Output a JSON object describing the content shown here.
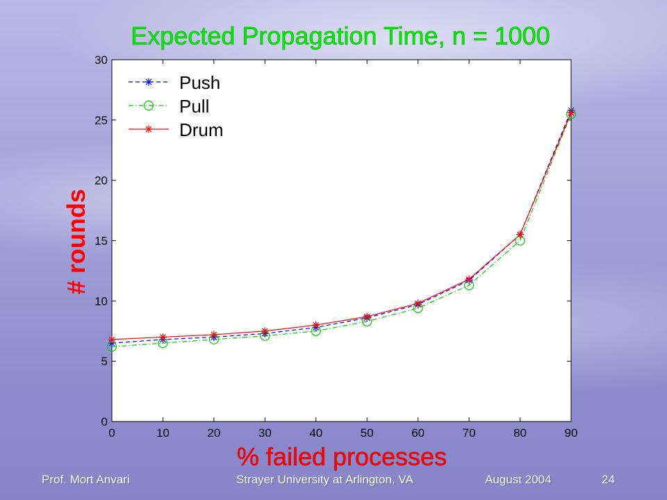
{
  "chart_data": {
    "type": "line",
    "title": "Expected Propagation Time, n = 1000",
    "xlabel": "% failed processes",
    "ylabel": "# rounds",
    "xlim": [
      0,
      90
    ],
    "ylim": [
      0,
      30
    ],
    "x": [
      0,
      10,
      20,
      30,
      40,
      50,
      60,
      70,
      80,
      90
    ],
    "xticks": [
      0,
      10,
      20,
      30,
      40,
      50,
      60,
      70,
      80,
      90
    ],
    "yticks": [
      0,
      5,
      10,
      15,
      20,
      25,
      30
    ],
    "legend_position": "top-left",
    "grid": false,
    "series": [
      {
        "name": "Push",
        "color": "#0000ff",
        "dash": "6,4",
        "marker": "star",
        "values": [
          6.5,
          6.8,
          7.0,
          7.3,
          7.8,
          8.6,
          9.7,
          11.7,
          15.5,
          25.8
        ]
      },
      {
        "name": "Pull",
        "color": "#00cc00",
        "dash": "7,3,1.5,3",
        "marker": "circle",
        "values": [
          6.2,
          6.5,
          6.8,
          7.1,
          7.5,
          8.3,
          9.4,
          11.3,
          15.0,
          25.5
        ]
      },
      {
        "name": "Drum",
        "color": "#ff0000",
        "dash": "",
        "marker": "star",
        "values": [
          6.8,
          7.0,
          7.2,
          7.5,
          8.0,
          8.7,
          9.8,
          11.8,
          15.5,
          25.6
        ]
      }
    ],
    "colors": {
      "title": "#00ee00",
      "axis_label": "#ff0000",
      "tick": "#000000"
    }
  },
  "footer": {
    "author": "Prof. Mort Anvari",
    "institution": "Strayer University at Arlington, VA",
    "date": "August 2004",
    "page": "24"
  }
}
